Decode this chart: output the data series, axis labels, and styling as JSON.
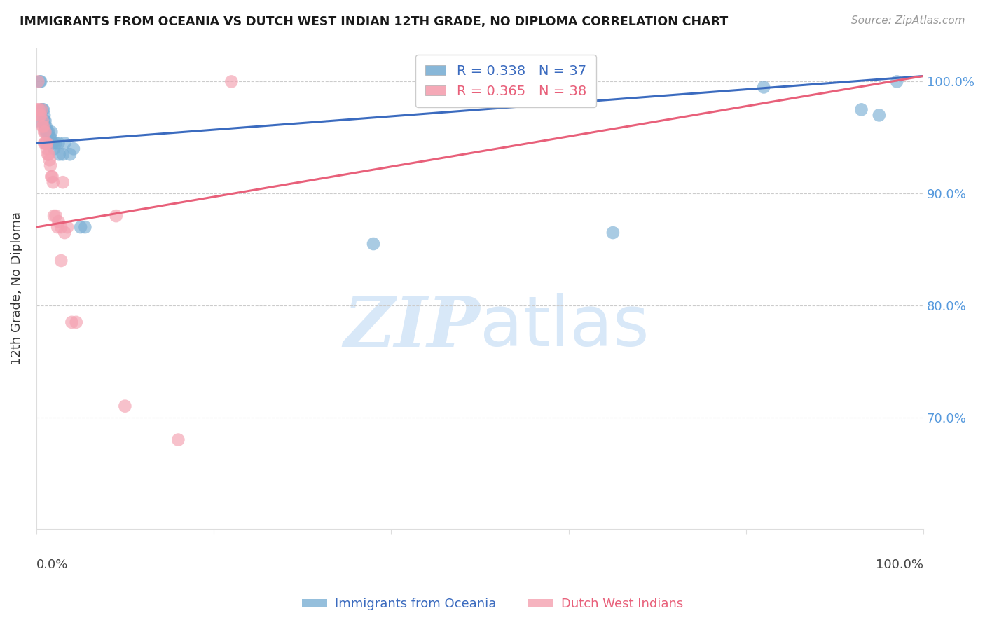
{
  "title": "IMMIGRANTS FROM OCEANIA VS DUTCH WEST INDIAN 12TH GRADE, NO DIPLOMA CORRELATION CHART",
  "source": "Source: ZipAtlas.com",
  "ylabel": "12th Grade, No Diploma",
  "xlim": [
    0.0,
    1.0
  ],
  "ylim": [
    0.6,
    1.03
  ],
  "yticks": [
    0.7,
    0.8,
    0.9,
    1.0
  ],
  "ytick_labels": [
    "70.0%",
    "80.0%",
    "90.0%",
    "100.0%"
  ],
  "blue_R": 0.338,
  "blue_N": 37,
  "pink_R": 0.365,
  "pink_N": 38,
  "legend_label_blue": "Immigrants from Oceania",
  "legend_label_pink": "Dutch West Indians",
  "blue_color": "#7BAFD4",
  "pink_color": "#F4A0B0",
  "blue_line_color": "#3B6BBF",
  "pink_line_color": "#E8607A",
  "watermark_color": "#D8E8F8",
  "blue_x": [
    0.001,
    0.004,
    0.005,
    0.006,
    0.007,
    0.008,
    0.009,
    0.009,
    0.01,
    0.01,
    0.011,
    0.011,
    0.012,
    0.013,
    0.014,
    0.015,
    0.015,
    0.016,
    0.017,
    0.018,
    0.019,
    0.02,
    0.022,
    0.025,
    0.026,
    0.03,
    0.032,
    0.038,
    0.042,
    0.05,
    0.055,
    0.38,
    0.65,
    0.82,
    0.93,
    0.95,
    0.97
  ],
  "blue_y": [
    0.965,
    1.0,
    1.0,
    0.975,
    0.975,
    0.975,
    0.97,
    0.965,
    0.965,
    0.96,
    0.96,
    0.955,
    0.955,
    0.955,
    0.955,
    0.95,
    0.945,
    0.95,
    0.955,
    0.945,
    0.945,
    0.94,
    0.945,
    0.945,
    0.935,
    0.935,
    0.945,
    0.935,
    0.94,
    0.87,
    0.87,
    0.855,
    0.865,
    0.995,
    0.975,
    0.97,
    1.0
  ],
  "pink_x": [
    0.001,
    0.002,
    0.003,
    0.004,
    0.005,
    0.006,
    0.007,
    0.007,
    0.008,
    0.009,
    0.009,
    0.01,
    0.01,
    0.011,
    0.012,
    0.012,
    0.013,
    0.014,
    0.015,
    0.016,
    0.017,
    0.018,
    0.019,
    0.02,
    0.022,
    0.025,
    0.028,
    0.03,
    0.035,
    0.04,
    0.045,
    0.09,
    0.1,
    0.16,
    0.22,
    0.024,
    0.028,
    0.032
  ],
  "pink_y": [
    0.975,
    1.0,
    0.975,
    0.97,
    0.97,
    0.975,
    0.965,
    0.96,
    0.96,
    0.955,
    0.945,
    0.955,
    0.945,
    0.945,
    0.945,
    0.94,
    0.935,
    0.935,
    0.93,
    0.925,
    0.915,
    0.915,
    0.91,
    0.88,
    0.88,
    0.875,
    0.84,
    0.91,
    0.87,
    0.785,
    0.785,
    0.88,
    0.71,
    0.68,
    1.0,
    0.87,
    0.87,
    0.865
  ],
  "blue_line_x0": 0.0,
  "blue_line_y0": 0.945,
  "blue_line_x1": 1.0,
  "blue_line_y1": 1.005,
  "pink_line_x0": 0.0,
  "pink_line_y0": 0.87,
  "pink_line_x1": 1.0,
  "pink_line_y1": 1.005
}
